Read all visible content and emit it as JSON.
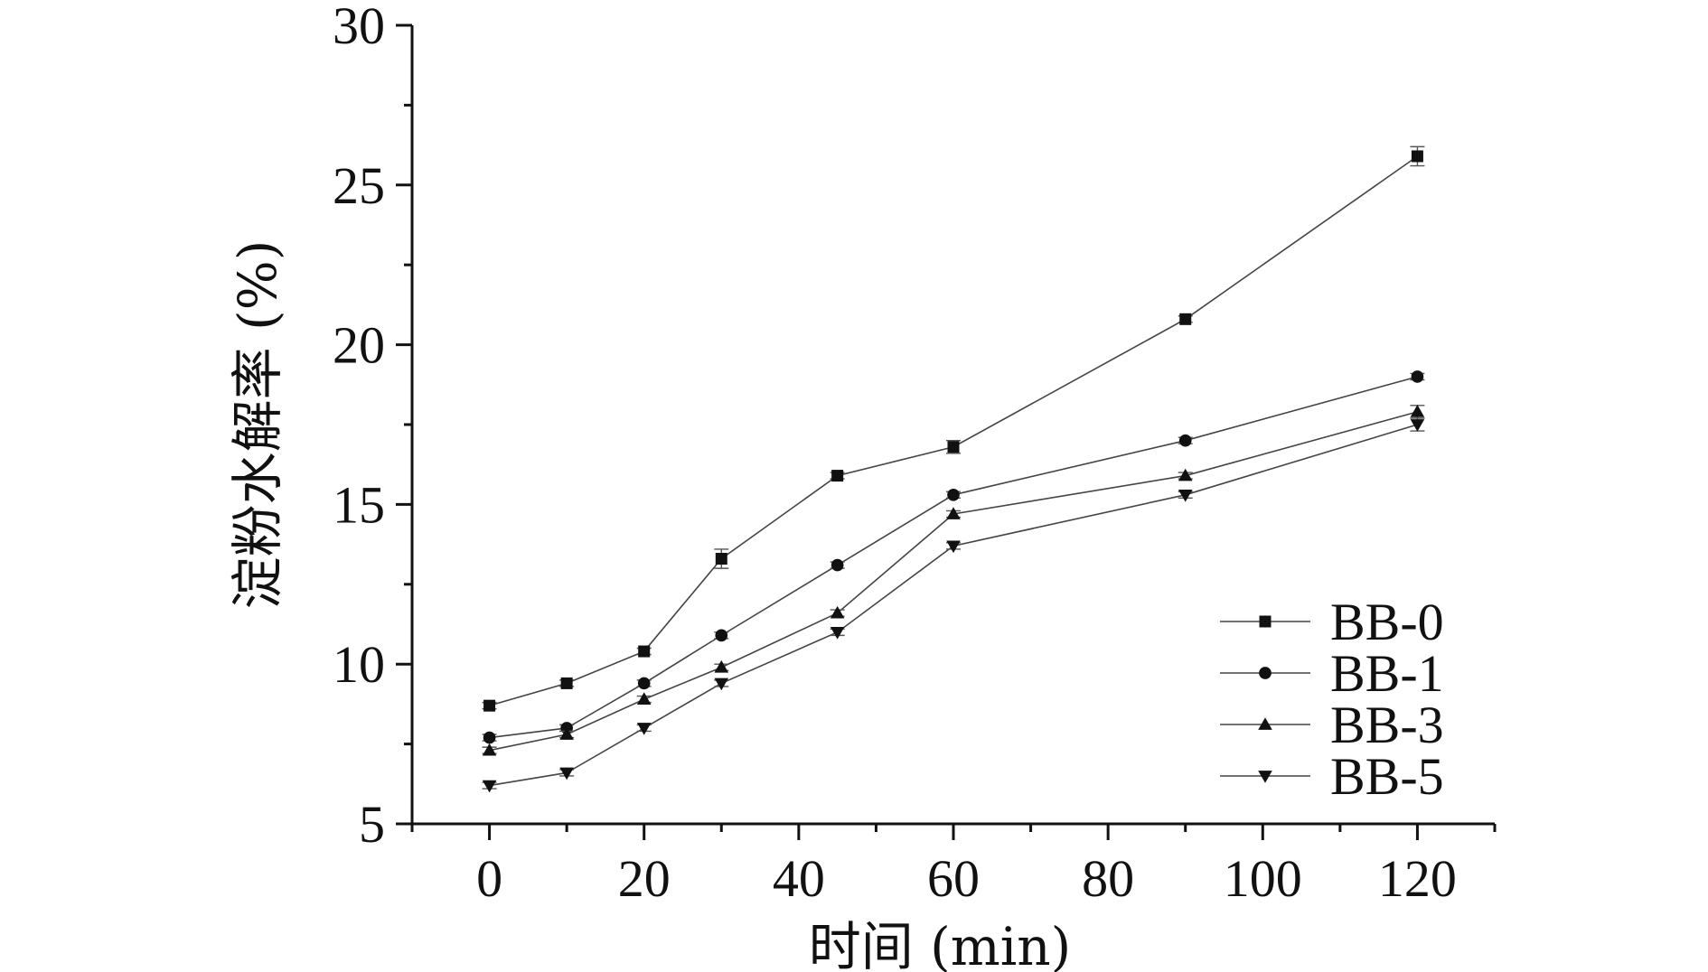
{
  "chart_data": {
    "type": "line",
    "xlabel": "时间 (min)",
    "ylabel": "淀粉水解率 (%)",
    "xlim": [
      -10,
      130
    ],
    "ylim": [
      5,
      30
    ],
    "x_ticks": [
      0,
      20,
      40,
      60,
      80,
      100,
      120
    ],
    "y_ticks": [
      5,
      10,
      15,
      20,
      25,
      30
    ],
    "x": [
      0,
      10,
      20,
      30,
      45,
      60,
      90,
      120
    ],
    "legend_position": "bottom-right",
    "series": [
      {
        "name": "BB-0",
        "marker": "square",
        "values": [
          8.7,
          9.4,
          10.4,
          13.3,
          15.9,
          16.8,
          20.8,
          25.9
        ],
        "errors": [
          0.1,
          0.1,
          0.1,
          0.3,
          0.1,
          0.2,
          0.1,
          0.3
        ]
      },
      {
        "name": "BB-1",
        "marker": "circle",
        "values": [
          7.7,
          8.0,
          9.4,
          10.9,
          13.1,
          15.3,
          17.0,
          19.0
        ],
        "errors": [
          0.1,
          0.1,
          0.1,
          0.1,
          0.1,
          0.1,
          0.1,
          0.1
        ]
      },
      {
        "name": "BB-3",
        "marker": "triangle-up",
        "values": [
          7.3,
          7.8,
          8.9,
          9.9,
          11.6,
          14.7,
          15.9,
          17.9
        ],
        "errors": [
          0.1,
          0.1,
          0.1,
          0.1,
          0.1,
          0.1,
          0.1,
          0.2
        ]
      },
      {
        "name": "BB-5",
        "marker": "triangle-down",
        "values": [
          6.2,
          6.6,
          8.0,
          9.4,
          11.0,
          13.7,
          15.3,
          17.5
        ],
        "errors": [
          0.1,
          0.1,
          0.1,
          0.1,
          0.1,
          0.1,
          0.1,
          0.2
        ]
      }
    ]
  }
}
